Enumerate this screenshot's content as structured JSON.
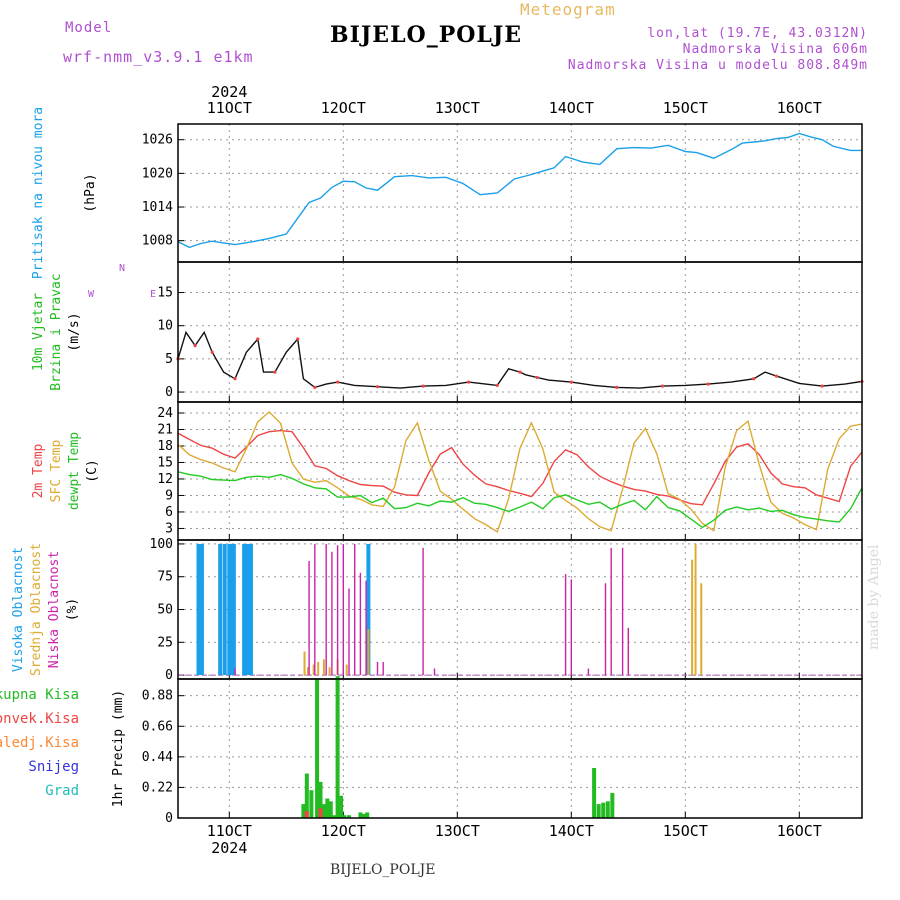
{
  "header": {
    "model_label": "Model",
    "model_name": "wrf-nmm_v3.9.1 e1km",
    "station": "BIJELO_POLJE",
    "product": "Meteogram",
    "coords": "lon,lat (19.7E, 43.0312N)",
    "elevation": "Nadmorska Visina 606m",
    "model_elevation": "Nadmorska Visina u modelu 808.849m"
  },
  "footer": {
    "station": "BIJELO_POLJE",
    "credit": "made by Angel"
  },
  "time_axis": {
    "year": "2024",
    "ticks": [
      "11OCT",
      "12OCT",
      "13OCT",
      "14OCT",
      "15OCT",
      "16OCT"
    ],
    "tick_day": [
      11,
      12,
      13,
      14,
      15,
      16
    ],
    "range_day": [
      10.55,
      16.55
    ]
  },
  "chart_data": [
    {
      "type": "line",
      "panel": "pressure",
      "ylabel": [
        "Pritisak na nivou mora",
        "(hPa)"
      ],
      "yticks": [
        "1008",
        "1014",
        "1020",
        "1026"
      ],
      "ylim": [
        1004.2,
        1028.8
      ],
      "grid": true,
      "series": [
        {
          "name": "Pritisak na nivou mora",
          "color": "#1aa0ea",
          "x": [
            10.55,
            10.65,
            10.75,
            10.85,
            10.95,
            11.05,
            11.2,
            11.35,
            11.5,
            11.6,
            11.7,
            11.8,
            11.9,
            12.0,
            12.1,
            12.2,
            12.3,
            12.45,
            12.6,
            12.75,
            12.9,
            13.05,
            13.2,
            13.35,
            13.5,
            13.65,
            13.75,
            13.85,
            13.95,
            14.1,
            14.25,
            14.4,
            14.55,
            14.7,
            14.85,
            15.0,
            15.1,
            15.25,
            15.4,
            15.5,
            15.6,
            15.7,
            15.8,
            15.9,
            16.0,
            16.1,
            16.2,
            16.3,
            16.45,
            16.55
          ],
          "y": [
            1007.8,
            1006.8,
            1007.5,
            1007.9,
            1007.6,
            1007.3,
            1007.8,
            1008.4,
            1009.2,
            1012.0,
            1014.8,
            1015.6,
            1017.5,
            1018.6,
            1018.5,
            1017.4,
            1017.0,
            1019.4,
            1019.6,
            1019.2,
            1019.3,
            1018.2,
            1016.2,
            1016.5,
            1019.0,
            1019.8,
            1020.4,
            1021.0,
            1023.0,
            1022.0,
            1021.6,
            1024.4,
            1024.6,
            1024.5,
            1025.0,
            1023.9,
            1023.7,
            1022.7,
            1024.2,
            1025.4,
            1025.6,
            1025.8,
            1026.2,
            1026.4,
            1027.1,
            1026.5,
            1026.0,
            1024.8,
            1024.1,
            1024.1
          ]
        }
      ]
    },
    {
      "type": "line",
      "panel": "wind",
      "ylabel": [
        "10m Vjetar",
        "Brzina i Pravac",
        "(m/s)"
      ],
      "direction_key": [
        "N",
        "W",
        "E"
      ],
      "yticks": [
        "0",
        "5",
        "10",
        "15"
      ],
      "ylim": [
        -1.5,
        19.6
      ],
      "grid": true,
      "series": [
        {
          "name": "10m Vjetar",
          "color": "#111111",
          "x": [
            10.55,
            10.62,
            10.7,
            10.78,
            10.85,
            10.95,
            11.05,
            11.15,
            11.25,
            11.3,
            11.4,
            11.5,
            11.6,
            11.65,
            11.75,
            11.85,
            11.95,
            12.1,
            12.3,
            12.5,
            12.7,
            12.9,
            13.1,
            13.25,
            13.35,
            13.45,
            13.55,
            13.6,
            13.7,
            13.8,
            14.0,
            14.2,
            14.4,
            14.6,
            14.8,
            15.0,
            15.2,
            15.4,
            15.6,
            15.7,
            15.8,
            16.0,
            16.2,
            16.4,
            16.55
          ],
          "y": [
            5,
            9,
            7,
            9,
            6,
            3,
            2,
            6,
            8,
            3,
            3,
            6,
            8,
            2,
            0.7,
            1.2,
            1.5,
            1.0,
            0.8,
            0.6,
            0.9,
            1.0,
            1.5,
            1.2,
            1.0,
            3.5,
            3.0,
            2.6,
            2.2,
            1.8,
            1.5,
            1.0,
            0.7,
            0.6,
            0.9,
            1.0,
            1.2,
            1.5,
            2.0,
            3.0,
            2.4,
            1.3,
            0.9,
            1.2,
            1.6
          ]
        }
      ]
    },
    {
      "type": "line",
      "panel": "temperature",
      "ylabel": [
        "2m Temp",
        "SFC Temp",
        "dewpt Temp",
        "(C)"
      ],
      "yticks": [
        "3",
        "6",
        "9",
        "12",
        "15",
        "18",
        "21",
        "24"
      ],
      "ylim": [
        0.9,
        26.0
      ],
      "grid": true,
      "series": [
        {
          "name": "2m Temp",
          "color": "#ee4444",
          "x": [
            10.55,
            10.65,
            10.75,
            10.85,
            10.95,
            11.05,
            11.15,
            11.25,
            11.35,
            11.45,
            11.55,
            11.65,
            11.75,
            11.85,
            11.95,
            12.05,
            12.15,
            12.25,
            12.35,
            12.45,
            12.55,
            12.65,
            12.75,
            12.85,
            12.95,
            13.05,
            13.15,
            13.25,
            13.35,
            13.45,
            13.55,
            13.65,
            13.75,
            13.85,
            13.95,
            14.05,
            14.15,
            14.25,
            14.35,
            14.45,
            14.55,
            14.65,
            14.75,
            14.85,
            14.95,
            15.05,
            15.15,
            15.25,
            15.35,
            15.45,
            15.55,
            15.65,
            15.75,
            15.85,
            15.95,
            16.05,
            16.15,
            16.25,
            16.35,
            16.45,
            16.55
          ],
          "y": [
            20.3,
            19.2,
            18.1,
            17.6,
            16.5,
            15.8,
            17.8,
            19.9,
            20.6,
            20.8,
            20.6,
            17.7,
            14.4,
            13.9,
            12.6,
            11.7,
            11.0,
            10.8,
            10.7,
            9.6,
            9.1,
            9.0,
            13.1,
            16.5,
            17.7,
            14.7,
            12.7,
            11.1,
            10.6,
            9.9,
            9.4,
            8.8,
            11.2,
            15.2,
            17.3,
            16.4,
            14.2,
            12.5,
            11.5,
            10.7,
            10.1,
            9.8,
            9.2,
            8.9,
            8.2,
            7.5,
            7.3,
            11.1,
            15.2,
            17.8,
            18.4,
            16.4,
            13.1,
            11.1,
            10.6,
            10.4,
            9.1,
            8.5,
            7.9,
            14.3,
            16.9
          ]
        },
        {
          "name": "SFC Temp",
          "color": "#ddaa33",
          "x": [
            10.55,
            10.65,
            10.75,
            10.85,
            10.95,
            11.05,
            11.15,
            11.25,
            11.35,
            11.45,
            11.55,
            11.65,
            11.75,
            11.85,
            11.95,
            12.05,
            12.15,
            12.25,
            12.35,
            12.45,
            12.55,
            12.65,
            12.75,
            12.85,
            12.95,
            13.05,
            13.15,
            13.25,
            13.35,
            13.45,
            13.55,
            13.65,
            13.75,
            13.85,
            13.95,
            14.05,
            14.15,
            14.25,
            14.35,
            14.45,
            14.55,
            14.65,
            14.75,
            14.85,
            14.95,
            15.05,
            15.15,
            15.25,
            15.35,
            15.45,
            15.55,
            15.65,
            15.75,
            15.85,
            15.95,
            16.05,
            16.15,
            16.25,
            16.35,
            16.45,
            16.55
          ],
          "y": [
            18.3,
            16.4,
            15.5,
            14.9,
            14.0,
            13.3,
            17.5,
            22.4,
            24.2,
            22.1,
            14.9,
            12.0,
            11.4,
            11.7,
            10.4,
            8.9,
            8.3,
            7.3,
            7.0,
            10.6,
            19.0,
            22.2,
            15.4,
            9.8,
            8.3,
            6.5,
            4.8,
            3.7,
            2.4,
            8.4,
            17.6,
            22.2,
            17.5,
            9.6,
            8.1,
            6.7,
            4.8,
            3.3,
            2.6,
            10.2,
            18.5,
            21.2,
            16.6,
            9.3,
            8.3,
            6.5,
            3.9,
            2.6,
            14.1,
            20.8,
            22.5,
            14.5,
            7.8,
            5.8,
            4.9,
            3.7,
            2.8,
            13.8,
            19.3,
            21.6,
            22.0
          ]
        },
        {
          "name": "dewpt Temp",
          "color": "#22cc22",
          "x": [
            10.55,
            10.65,
            10.75,
            10.85,
            10.95,
            11.05,
            11.15,
            11.25,
            11.35,
            11.45,
            11.55,
            11.65,
            11.75,
            11.85,
            11.95,
            12.05,
            12.15,
            12.25,
            12.35,
            12.45,
            12.55,
            12.65,
            12.75,
            12.85,
            12.95,
            13.05,
            13.15,
            13.25,
            13.35,
            13.45,
            13.55,
            13.65,
            13.75,
            13.85,
            13.95,
            14.05,
            14.15,
            14.25,
            14.35,
            14.45,
            14.55,
            14.65,
            14.75,
            14.85,
            14.95,
            15.05,
            15.15,
            15.25,
            15.35,
            15.45,
            15.55,
            15.65,
            15.75,
            15.85,
            15.95,
            16.05,
            16.15,
            16.25,
            16.35,
            16.45,
            16.55
          ],
          "y": [
            13.3,
            12.8,
            12.5,
            11.9,
            11.8,
            11.7,
            12.3,
            12.5,
            12.3,
            12.8,
            12.1,
            11.1,
            10.4,
            10.2,
            8.7,
            8.7,
            9.0,
            7.7,
            8.5,
            6.6,
            6.8,
            7.6,
            7.1,
            8.0,
            7.8,
            8.6,
            7.6,
            7.4,
            6.8,
            6.1,
            6.9,
            7.8,
            6.6,
            8.6,
            9.1,
            8.2,
            7.4,
            7.8,
            6.5,
            7.4,
            8.1,
            6.4,
            8.8,
            6.8,
            6.2,
            4.7,
            3.2,
            4.5,
            6.3,
            6.9,
            6.4,
            6.7,
            6.1,
            6.3,
            5.5,
            5.0,
            4.7,
            4.4,
            4.2,
            6.6,
            10.4
          ]
        }
      ]
    },
    {
      "type": "bar",
      "panel": "cloud",
      "ylabel": [
        "Visoka Oblacnost",
        "Srednja Oblacnost",
        "Niska Oblacnost",
        "(%)"
      ],
      "yticks": [
        "0",
        "25",
        "50",
        "75",
        "100"
      ],
      "ylim": [
        -3,
        103
      ],
      "grid": true,
      "series": [
        {
          "name": "Visoka Oblacnost",
          "color": "#1aa0ea",
          "x": [
            10.73,
            10.76,
            10.92,
            10.96,
            11.0,
            11.02,
            11.04,
            11.13,
            11.16,
            11.19,
            12.22
          ],
          "y": [
            100,
            100,
            100,
            100,
            100,
            100,
            100,
            100,
            100,
            100,
            100
          ]
        },
        {
          "name": "Srednja Oblacnost",
          "color": "#ddaa33",
          "x": [
            11.66,
            11.69,
            11.74,
            11.78,
            11.83,
            11.88,
            11.95,
            12.03,
            12.22,
            15.06,
            15.09,
            15.14
          ],
          "y": [
            18,
            6,
            8,
            10,
            12,
            6,
            12,
            8,
            35,
            88,
            100,
            70
          ]
        },
        {
          "name": "Niska Oblacnost",
          "color": "#cc22aa",
          "x": [
            11.05,
            11.7,
            11.75,
            11.85,
            11.9,
            11.95,
            12.0,
            12.05,
            12.1,
            12.15,
            12.2,
            12.3,
            12.35,
            12.7,
            12.8,
            13.95,
            14.0,
            14.15,
            14.3,
            14.35,
            14.45,
            14.5
          ],
          "y": [
            5,
            87,
            100,
            100,
            94,
            99,
            100,
            66,
            100,
            78,
            72,
            10,
            10,
            97,
            5,
            77,
            73,
            5,
            70,
            97,
            97,
            36
          ]
        }
      ]
    },
    {
      "type": "bar",
      "panel": "precip",
      "ylabel": [
        "1hr Precip (mm)"
      ],
      "legend": [
        "Ukupna Kisa",
        "Konvek.Kisa",
        "Zaledj.Kisa",
        "Snijeg",
        "Grad"
      ],
      "legend_colors": [
        "#22bb22",
        "#ee4444",
        "#ff8833",
        "#3333dd",
        "#22bbbb"
      ],
      "yticks": [
        "0",
        "0.22",
        "0.44",
        "0.66",
        "0.88"
      ],
      "ylim": [
        0,
        1.0
      ],
      "grid": true,
      "series": [
        {
          "name": "Ukupna Kisa",
          "color": "#22bb22",
          "x": [
            11.65,
            11.68,
            11.72,
            11.77,
            11.8,
            11.83,
            11.86,
            11.89,
            11.92,
            11.95,
            11.98,
            12.01,
            12.05,
            12.15,
            12.18,
            12.21,
            14.2,
            14.24,
            14.28,
            14.32,
            14.36
          ],
          "y": [
            0.1,
            0.32,
            0.2,
            1.0,
            0.26,
            0.1,
            0.14,
            0.12,
            0.02,
            1.02,
            0.16,
            0.02,
            0.02,
            0.04,
            0.03,
            0.04,
            0.36,
            0.1,
            0.11,
            0.12,
            0.18
          ]
        },
        {
          "name": "Konvek.Kisa",
          "color": "#ee4444",
          "x": [
            11.68,
            11.8
          ],
          "y": [
            0.05,
            0.07
          ]
        },
        {
          "name": "Zaledj.Kisa",
          "color": "#ff8833",
          "x": [],
          "y": []
        },
        {
          "name": "Snijeg",
          "color": "#3333dd",
          "x": [],
          "y": []
        },
        {
          "name": "Grad",
          "color": "#22bbbb",
          "x": [],
          "y": []
        }
      ]
    }
  ]
}
